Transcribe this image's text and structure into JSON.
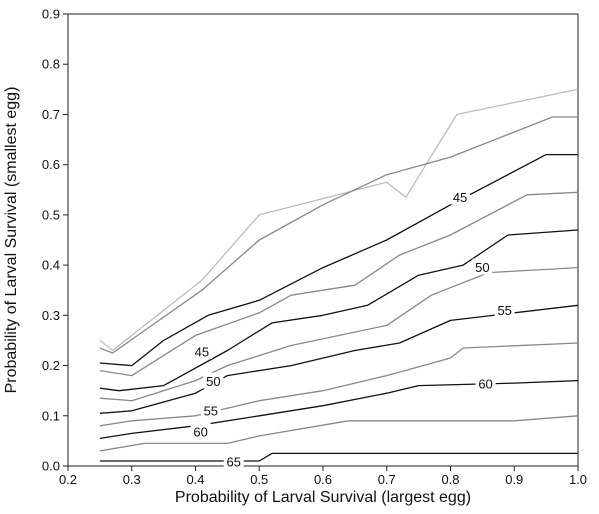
{
  "chart_data": {
    "type": "contour",
    "title": "",
    "xlabel": "Probability of Larval Survival (largest egg)",
    "ylabel": "Probability of Larval Survival (smallest egg)",
    "xlim": [
      0.2,
      1.0
    ],
    "ylim": [
      0.0,
      0.9
    ],
    "xticks": [
      "0.2",
      "0.3",
      "0.4",
      "0.5",
      "0.6",
      "0.7",
      "0.8",
      "0.9",
      "1.0"
    ],
    "yticks": [
      "0.0",
      "0.1",
      "0.2",
      "0.3",
      "0.4",
      "0.5",
      "0.6",
      "0.7",
      "0.8",
      "0.9"
    ],
    "grid": false,
    "series": [
      {
        "color": "#bbbbbb",
        "points": [
          [
            0.25,
            0.25
          ],
          [
            0.27,
            0.23
          ],
          [
            0.41,
            0.37
          ],
          [
            0.5,
            0.5
          ],
          [
            0.7,
            0.565
          ],
          [
            0.73,
            0.535
          ],
          [
            0.81,
            0.7
          ],
          [
            1.0,
            0.75
          ]
        ]
      },
      {
        "color": "#888888",
        "points": [
          [
            0.25,
            0.235
          ],
          [
            0.27,
            0.225
          ],
          [
            0.41,
            0.35
          ],
          [
            0.5,
            0.45
          ],
          [
            0.6,
            0.52
          ],
          [
            0.7,
            0.58
          ],
          [
            0.8,
            0.615
          ],
          [
            0.96,
            0.695
          ],
          [
            1.0,
            0.695
          ]
        ]
      },
      {
        "color": "#111111",
        "label": "45",
        "label_at": [
          0.815,
          0.535
        ],
        "points": [
          [
            0.25,
            0.205
          ],
          [
            0.3,
            0.2
          ],
          [
            0.35,
            0.25
          ],
          [
            0.42,
            0.3
          ],
          [
            0.5,
            0.33
          ],
          [
            0.6,
            0.395
          ],
          [
            0.7,
            0.45
          ],
          [
            0.8,
            0.52
          ],
          [
            0.95,
            0.62
          ],
          [
            1.0,
            0.62
          ]
        ]
      },
      {
        "color": "#888888",
        "points": [
          [
            0.25,
            0.19
          ],
          [
            0.3,
            0.18
          ],
          [
            0.4,
            0.26
          ],
          [
            0.5,
            0.305
          ],
          [
            0.55,
            0.34
          ],
          [
            0.65,
            0.36
          ],
          [
            0.72,
            0.42
          ],
          [
            0.8,
            0.46
          ],
          [
            0.92,
            0.54
          ],
          [
            1.0,
            0.545
          ]
        ]
      },
      {
        "color": "#111111",
        "label": "50",
        "label_at": [
          0.85,
          0.395
        ],
        "points": [
          [
            0.25,
            0.155
          ],
          [
            0.28,
            0.15
          ],
          [
            0.35,
            0.16
          ],
          [
            0.45,
            0.23
          ],
          [
            0.52,
            0.285
          ],
          [
            0.6,
            0.3
          ],
          [
            0.67,
            0.32
          ],
          [
            0.75,
            0.38
          ],
          [
            0.82,
            0.4
          ],
          [
            0.89,
            0.46
          ],
          [
            1.0,
            0.47
          ]
        ]
      },
      {
        "color": "#888888",
        "points": [
          [
            0.25,
            0.135
          ],
          [
            0.3,
            0.13
          ],
          [
            0.4,
            0.17
          ],
          [
            0.45,
            0.2
          ],
          [
            0.55,
            0.24
          ],
          [
            0.7,
            0.28
          ],
          [
            0.77,
            0.34
          ],
          [
            0.86,
            0.385
          ],
          [
            1.0,
            0.395
          ]
        ]
      },
      {
        "color": "#111111",
        "label": "55",
        "label_at": [
          0.885,
          0.31
        ],
        "points": [
          [
            0.25,
            0.105
          ],
          [
            0.3,
            0.11
          ],
          [
            0.4,
            0.145
          ],
          [
            0.45,
            0.18
          ],
          [
            0.55,
            0.2
          ],
          [
            0.65,
            0.23
          ],
          [
            0.72,
            0.245
          ],
          [
            0.8,
            0.29
          ],
          [
            1.0,
            0.32
          ]
        ]
      },
      {
        "color": "#888888",
        "points": [
          [
            0.25,
            0.08
          ],
          [
            0.3,
            0.09
          ],
          [
            0.4,
            0.1
          ],
          [
            0.5,
            0.13
          ],
          [
            0.6,
            0.15
          ],
          [
            0.7,
            0.18
          ],
          [
            0.8,
            0.215
          ],
          [
            0.82,
            0.235
          ],
          [
            1.0,
            0.245
          ]
        ]
      },
      {
        "color": "#111111",
        "label": "60",
        "label_at": [
          0.855,
          0.163
        ],
        "points": [
          [
            0.25,
            0.055
          ],
          [
            0.3,
            0.065
          ],
          [
            0.4,
            0.08
          ],
          [
            0.5,
            0.1
          ],
          [
            0.6,
            0.12
          ],
          [
            0.7,
            0.145
          ],
          [
            0.75,
            0.16
          ],
          [
            0.9,
            0.165
          ],
          [
            1.0,
            0.17
          ]
        ]
      },
      {
        "color": "#888888",
        "points": [
          [
            0.25,
            0.03
          ],
          [
            0.32,
            0.045
          ],
          [
            0.45,
            0.045
          ],
          [
            0.5,
            0.06
          ],
          [
            0.64,
            0.09
          ],
          [
            0.8,
            0.09
          ],
          [
            0.9,
            0.09
          ],
          [
            1.0,
            0.1
          ]
        ]
      },
      {
        "color": "#111111",
        "label": "65",
        "label_at": [
          0.46,
          0.008
        ],
        "points": [
          [
            0.25,
            0.01
          ],
          [
            0.45,
            0.01
          ],
          [
            0.5,
            0.01
          ],
          [
            0.52,
            0.025
          ],
          [
            1.0,
            0.025
          ]
        ]
      }
    ],
    "side_labels": [
      {
        "text": "45",
        "at": [
          0.41,
          0.227
        ]
      },
      {
        "text": "50",
        "at": [
          0.428,
          0.168
        ]
      },
      {
        "text": "55",
        "at": [
          0.424,
          0.11
        ]
      },
      {
        "text": "60",
        "at": [
          0.408,
          0.068
        ]
      }
    ]
  }
}
